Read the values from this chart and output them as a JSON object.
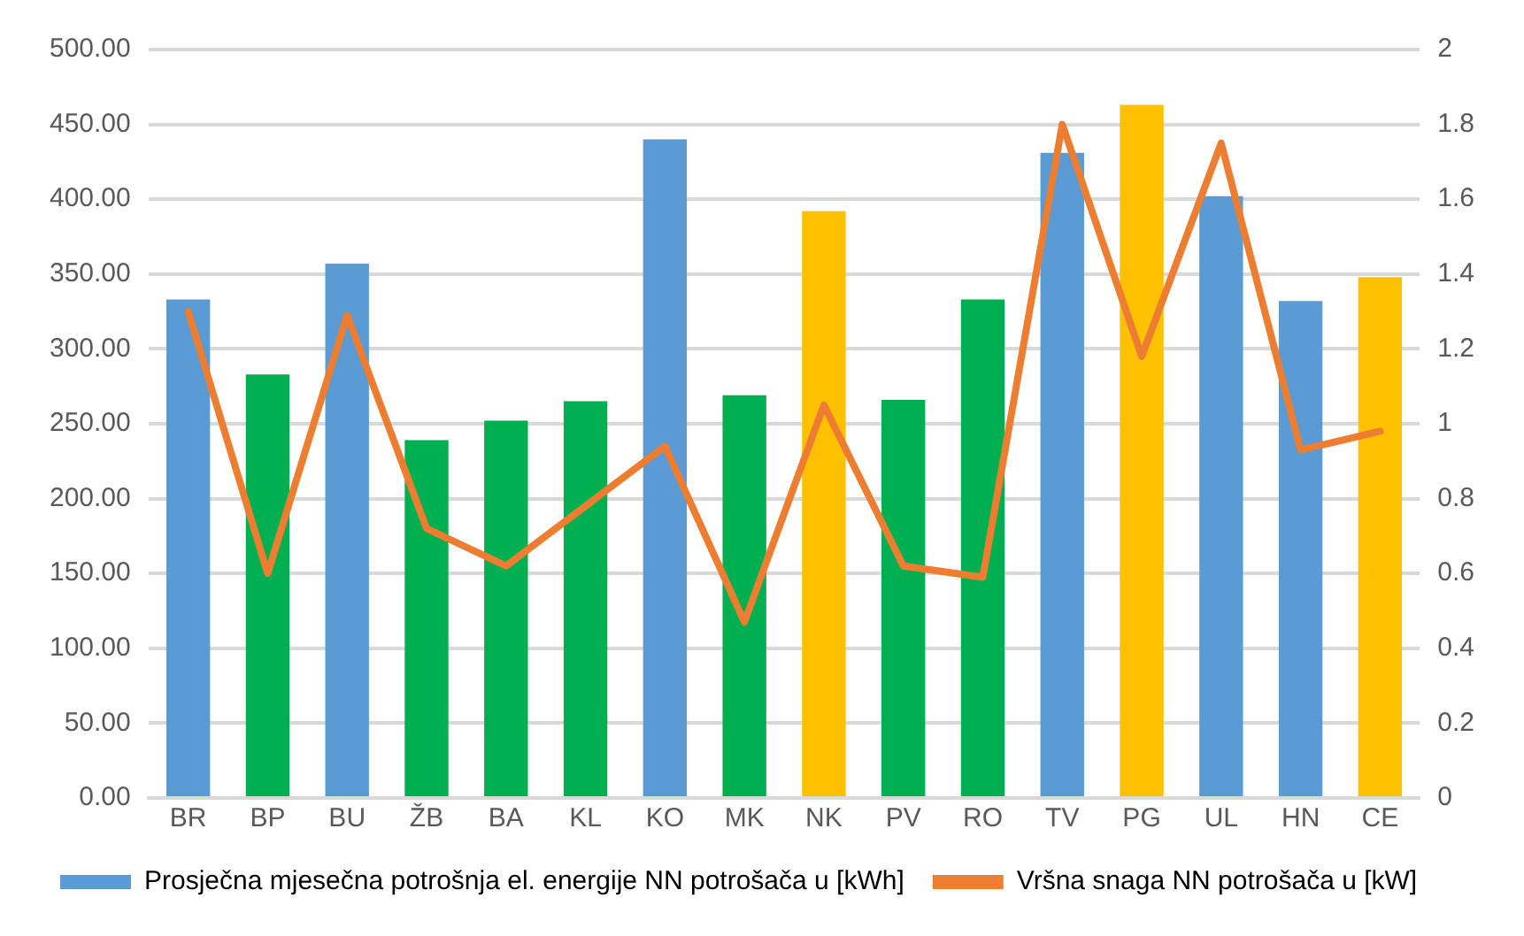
{
  "chart_data": {
    "type": "bar",
    "categories": [
      "BR",
      "BP",
      "BU",
      "ŽB",
      "BA",
      "KL",
      "KO",
      "MK",
      "NK",
      "PV",
      "RO",
      "TV",
      "PG",
      "UL",
      "HN",
      "CE"
    ],
    "series": [
      {
        "name": "Prosječna mjesečna potrošnja el. energije NN potrošača u [kWh]",
        "color": "#5b9bd5",
        "colors": [
          "#5b9bd5",
          "#00b050",
          "#5b9bd5",
          "#00b050",
          "#00b050",
          "#00b050",
          "#5b9bd5",
          "#00b050",
          "#ffc000",
          "#00b050",
          "#00b050",
          "#5b9bd5",
          "#ffc000",
          "#5b9bd5",
          "#5b9bd5",
          "#ffc000"
        ],
        "values": [
          333,
          283,
          357,
          239,
          252,
          265,
          440,
          269,
          392,
          266,
          333,
          431,
          463,
          402,
          332,
          348
        ]
      },
      {
        "name": "Vršna snaga NN potrošača u [kW]",
        "type": "line",
        "axis": "y2",
        "color": "#ed7d31",
        "values": [
          1.3,
          0.6,
          1.29,
          0.72,
          0.62,
          0.78,
          0.94,
          0.47,
          1.05,
          0.62,
          0.59,
          1.8,
          1.18,
          1.75,
          0.93,
          0.98
        ]
      }
    ],
    "ylim": [
      0,
      500
    ],
    "yticks": [
      {
        "value": 0,
        "label": "0.00"
      },
      {
        "value": 50,
        "label": "50.00"
      },
      {
        "value": 100,
        "label": "100.00"
      },
      {
        "value": 150,
        "label": "150.00"
      },
      {
        "value": 200,
        "label": "200.00"
      },
      {
        "value": 250,
        "label": "250.00"
      },
      {
        "value": 300,
        "label": "300.00"
      },
      {
        "value": 350,
        "label": "350.00"
      },
      {
        "value": 400,
        "label": "400.00"
      },
      {
        "value": 450,
        "label": "450.00"
      },
      {
        "value": 500,
        "label": "500.00"
      }
    ],
    "y2lim": [
      0,
      2
    ],
    "y2ticks": [
      0,
      0.2,
      0.4,
      0.6,
      0.8,
      1,
      1.2,
      1.4,
      1.6,
      1.8,
      2
    ],
    "grid": "y",
    "legend": "bottom",
    "marker": "none"
  }
}
